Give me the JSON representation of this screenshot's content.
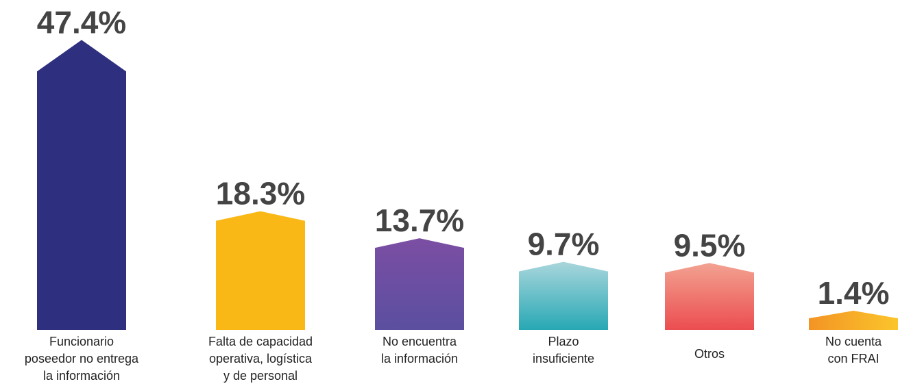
{
  "chart_data": {
    "type": "bar",
    "categories": [
      [
        "Funcionario",
        "poseedor no entrega",
        "la información"
      ],
      [
        "Falta de capacidad",
        "operativa, logística",
        "y de personal"
      ],
      [
        "No encuentra",
        "la información"
      ],
      [
        "Plazo",
        "insuficiente"
      ],
      [
        "Otros"
      ],
      [
        "No cuenta",
        "con FRAI"
      ]
    ],
    "values": [
      47.4,
      18.3,
      13.7,
      9.7,
      9.5,
      1.4
    ],
    "value_labels": [
      "47.4%",
      "18.3%",
      "13.7%",
      "9.7%",
      "9.5%",
      "1.4%"
    ],
    "colors": [
      [
        "#2e2f7f",
        "#2e2f7f"
      ],
      [
        "#f9b816",
        "#f9b816"
      ],
      [
        "#7b4ea3",
        "#5b4fa0"
      ],
      [
        "#a9d6dc",
        "#27a8b4"
      ],
      [
        "#f2a291",
        "#ec4d50"
      ],
      [
        "#fbc52c",
        "#f39424"
      ]
    ]
  }
}
